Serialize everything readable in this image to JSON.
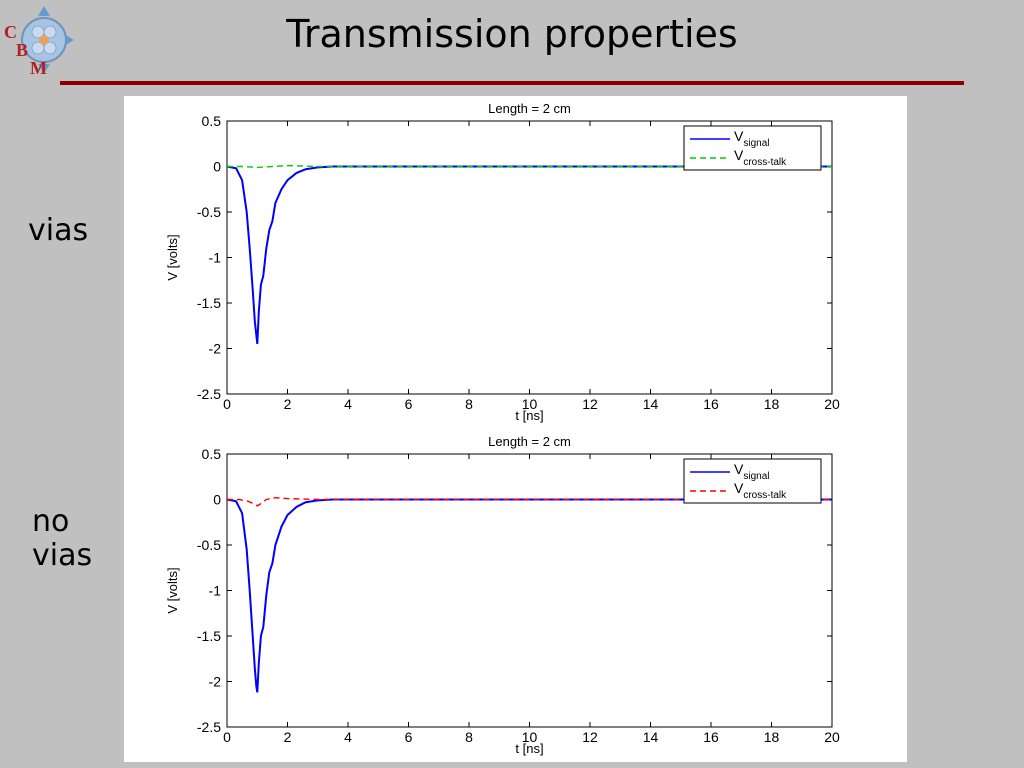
{
  "slide": {
    "title": "Transmission properties",
    "logo_letters": [
      "C",
      "B",
      "M"
    ],
    "label_top": "vias",
    "label_bottom_line1": "no",
    "label_bottom_line2": "vias"
  },
  "colors": {
    "title_rule": "#8b0000",
    "signal": "#0000ff",
    "crosstalk_top": "#00cc00",
    "crosstalk_bottom": "#ff0000"
  },
  "chart_data": [
    {
      "type": "line",
      "title": "Length = 2 cm",
      "xlabel": "t [ns]",
      "ylabel": "V [volts]",
      "xlim": [
        0,
        20
      ],
      "ylim": [
        -2.5,
        0.5
      ],
      "xticks": [
        0,
        2,
        4,
        6,
        8,
        10,
        12,
        14,
        16,
        18,
        20
      ],
      "yticks": [
        0.5,
        0,
        -0.5,
        -1,
        -1.5,
        -2,
        -2.5
      ],
      "ytick_labels": [
        "0.5",
        "0",
        "-0.5",
        "-1",
        "-1.5",
        "-2",
        "-2.5"
      ],
      "grid": false,
      "legend_position": "top-right",
      "series": [
        {
          "name": "V_signal",
          "legend_main": "V",
          "legend_sub": "signal",
          "color": "#0000ff",
          "style": "solid",
          "x": [
            0,
            0.3,
            0.5,
            0.65,
            0.75,
            0.85,
            0.92,
            0.97,
            1.0,
            1.05,
            1.12,
            1.2,
            1.3,
            1.4,
            1.5,
            1.6,
            1.8,
            2.0,
            2.3,
            2.6,
            3.0,
            3.5,
            5,
            10,
            20
          ],
          "y": [
            0,
            -0.02,
            -0.15,
            -0.5,
            -0.9,
            -1.35,
            -1.7,
            -1.85,
            -1.95,
            -1.6,
            -1.3,
            -1.2,
            -0.9,
            -0.7,
            -0.6,
            -0.4,
            -0.25,
            -0.15,
            -0.07,
            -0.03,
            -0.01,
            0,
            0,
            0,
            0
          ]
        },
        {
          "name": "V_cross-talk",
          "legend_main": "V",
          "legend_sub": "cross-talk",
          "color": "#00cc00",
          "style": "dashed",
          "x": [
            0,
            0.5,
            1.0,
            1.5,
            2.0,
            2.5,
            3.0,
            20
          ],
          "y": [
            0,
            0,
            -0.01,
            0.0,
            0.01,
            0.005,
            0,
            0
          ]
        }
      ]
    },
    {
      "type": "line",
      "title": "Length = 2 cm",
      "xlabel": "t [ns]",
      "ylabel": "V [volts]",
      "xlim": [
        0,
        20
      ],
      "ylim": [
        -2.5,
        0.5
      ],
      "xticks": [
        0,
        2,
        4,
        6,
        8,
        10,
        12,
        14,
        16,
        18,
        20
      ],
      "yticks": [
        0.5,
        0,
        -0.5,
        -1,
        -1.5,
        -2,
        -2.5
      ],
      "ytick_labels": [
        "0.5",
        "0",
        "-0.5",
        "-1",
        "-1.5",
        "-2",
        "-2.5"
      ],
      "grid": false,
      "legend_position": "top-right",
      "series": [
        {
          "name": "V_signal",
          "legend_main": "V",
          "legend_sub": "signal",
          "color": "#0000ff",
          "style": "solid",
          "x": [
            0,
            0.3,
            0.5,
            0.65,
            0.75,
            0.85,
            0.92,
            0.97,
            1.0,
            1.05,
            1.12,
            1.2,
            1.3,
            1.4,
            1.5,
            1.6,
            1.8,
            2.0,
            2.3,
            2.6,
            3.0,
            3.5,
            5,
            10,
            20
          ],
          "y": [
            0,
            -0.02,
            -0.15,
            -0.55,
            -1.0,
            -1.5,
            -1.85,
            -2.05,
            -2.12,
            -1.8,
            -1.5,
            -1.4,
            -1.05,
            -0.8,
            -0.7,
            -0.5,
            -0.3,
            -0.17,
            -0.08,
            -0.03,
            -0.01,
            0,
            0,
            0,
            0
          ]
        },
        {
          "name": "V_cross-talk",
          "legend_main": "V",
          "legend_sub": "cross-talk",
          "color": "#ff0000",
          "style": "dashed",
          "x": [
            0,
            0.4,
            0.7,
            0.9,
            1.0,
            1.1,
            1.3,
            1.6,
            2.0,
            2.5,
            3.0,
            20
          ],
          "y": [
            0,
            0,
            -0.02,
            -0.05,
            -0.07,
            -0.05,
            0.0,
            0.02,
            0.01,
            0.005,
            0,
            0
          ]
        }
      ]
    }
  ]
}
